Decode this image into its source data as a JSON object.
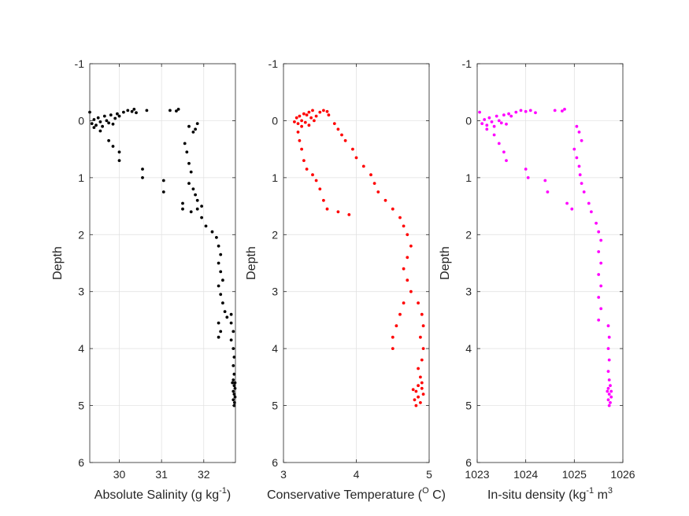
{
  "chart_data": [
    {
      "type": "scatter",
      "xlabel": "Absolute Salinity (g kg",
      "xlabel_sup": "-1",
      "xlabel_tail": ")",
      "ylabel": "Depth",
      "xlim": [
        29.3,
        32.75
      ],
      "ylim": [
        -1,
        6
      ],
      "y_reversed": true,
      "xticks": [
        30,
        31,
        32
      ],
      "yticks": [
        -1,
        0,
        1,
        2,
        3,
        4,
        5,
        6
      ],
      "grid": true,
      "color": "#000000",
      "points": [
        [
          29.3,
          -0.15
        ],
        [
          29.35,
          0.05
        ],
        [
          29.4,
          -0.02
        ],
        [
          29.45,
          0.08
        ],
        [
          29.5,
          -0.05
        ],
        [
          29.55,
          0.02
        ],
        [
          29.6,
          0.1
        ],
        [
          29.65,
          -0.08
        ],
        [
          29.7,
          0.0
        ],
        [
          29.75,
          0.04
        ],
        [
          29.8,
          -0.1
        ],
        [
          29.85,
          0.06
        ],
        [
          29.9,
          -0.04
        ],
        [
          29.95,
          -0.12
        ],
        [
          30.0,
          -0.08
        ],
        [
          30.1,
          -0.15
        ],
        [
          30.2,
          -0.18
        ],
        [
          30.3,
          -0.16
        ],
        [
          30.35,
          -0.2
        ],
        [
          30.4,
          -0.14
        ],
        [
          30.65,
          -0.18
        ],
        [
          31.2,
          -0.18
        ],
        [
          31.35,
          -0.17
        ],
        [
          31.4,
          -0.2
        ],
        [
          29.4,
          0.12
        ],
        [
          29.55,
          0.18
        ],
        [
          29.75,
          0.35
        ],
        [
          29.85,
          0.45
        ],
        [
          30.0,
          0.55
        ],
        [
          30.0,
          0.7
        ],
        [
          30.55,
          0.85
        ],
        [
          30.55,
          1.0
        ],
        [
          31.05,
          1.05
        ],
        [
          31.05,
          1.25
        ],
        [
          31.5,
          1.45
        ],
        [
          31.5,
          1.55
        ],
        [
          31.7,
          1.6
        ],
        [
          31.85,
          1.55
        ],
        [
          31.65,
          0.1
        ],
        [
          31.75,
          0.2
        ],
        [
          31.85,
          0.05
        ],
        [
          31.8,
          0.15
        ],
        [
          31.55,
          0.4
        ],
        [
          31.6,
          0.55
        ],
        [
          31.65,
          0.75
        ],
        [
          31.7,
          0.9
        ],
        [
          31.65,
          1.1
        ],
        [
          31.75,
          1.2
        ],
        [
          31.8,
          1.3
        ],
        [
          31.85,
          1.4
        ],
        [
          31.95,
          1.5
        ],
        [
          31.95,
          1.7
        ],
        [
          32.05,
          1.85
        ],
        [
          32.2,
          1.95
        ],
        [
          32.3,
          2.05
        ],
        [
          32.35,
          2.2
        ],
        [
          32.4,
          2.35
        ],
        [
          32.35,
          2.5
        ],
        [
          32.4,
          2.65
        ],
        [
          32.45,
          2.8
        ],
        [
          32.35,
          2.9
        ],
        [
          32.4,
          3.05
        ],
        [
          32.45,
          3.2
        ],
        [
          32.5,
          3.35
        ],
        [
          32.55,
          3.45
        ],
        [
          32.35,
          3.55
        ],
        [
          32.4,
          3.7
        ],
        [
          32.35,
          3.8
        ],
        [
          32.65,
          3.4
        ],
        [
          32.65,
          3.55
        ],
        [
          32.7,
          3.7
        ],
        [
          32.65,
          3.85
        ],
        [
          32.7,
          4.0
        ],
        [
          32.72,
          4.15
        ],
        [
          32.7,
          4.3
        ],
        [
          32.72,
          4.45
        ],
        [
          32.7,
          4.55
        ],
        [
          32.72,
          4.65
        ],
        [
          32.74,
          4.7
        ],
        [
          32.7,
          4.75
        ],
        [
          32.72,
          4.8
        ],
        [
          32.74,
          4.85
        ],
        [
          32.7,
          4.9
        ],
        [
          32.73,
          4.95
        ],
        [
          32.72,
          5.0
        ],
        [
          32.68,
          4.6
        ],
        [
          32.74,
          4.6
        ]
      ]
    },
    {
      "type": "scatter",
      "xlabel": "Conservative Temperature (",
      "xlabel_sup": "O",
      "xlabel_tail": " C)",
      "ylabel": "Depth",
      "xlim": [
        3,
        5
      ],
      "ylim": [
        -1,
        6
      ],
      "y_reversed": true,
      "xticks": [
        3,
        4,
        5
      ],
      "yticks": [
        -1,
        0,
        1,
        2,
        3,
        4,
        5,
        6
      ],
      "grid": true,
      "color": "#ff0000",
      "points": [
        [
          3.15,
          0.02
        ],
        [
          3.18,
          -0.05
        ],
        [
          3.2,
          0.05
        ],
        [
          3.22,
          -0.08
        ],
        [
          3.25,
          0.0
        ],
        [
          3.28,
          -0.12
        ],
        [
          3.3,
          0.03
        ],
        [
          3.32,
          -0.1
        ],
        [
          3.35,
          -0.15
        ],
        [
          3.38,
          -0.05
        ],
        [
          3.4,
          -0.18
        ],
        [
          3.42,
          0.0
        ],
        [
          3.45,
          -0.08
        ],
        [
          3.5,
          -0.15
        ],
        [
          3.55,
          -0.18
        ],
        [
          3.6,
          -0.16
        ],
        [
          3.62,
          -0.1
        ],
        [
          3.35,
          0.08
        ],
        [
          3.25,
          0.1
        ],
        [
          3.2,
          0.2
        ],
        [
          3.22,
          0.35
        ],
        [
          3.25,
          0.5
        ],
        [
          3.28,
          0.7
        ],
        [
          3.32,
          0.85
        ],
        [
          3.4,
          0.95
        ],
        [
          3.45,
          1.05
        ],
        [
          3.5,
          1.2
        ],
        [
          3.55,
          1.4
        ],
        [
          3.6,
          1.55
        ],
        [
          3.75,
          1.6
        ],
        [
          3.9,
          1.65
        ],
        [
          3.7,
          0.05
        ],
        [
          3.75,
          0.15
        ],
        [
          3.8,
          0.25
        ],
        [
          3.85,
          0.35
        ],
        [
          3.95,
          0.5
        ],
        [
          4.0,
          0.65
        ],
        [
          4.1,
          0.8
        ],
        [
          4.2,
          0.95
        ],
        [
          4.25,
          1.1
        ],
        [
          4.3,
          1.25
        ],
        [
          4.4,
          1.4
        ],
        [
          4.5,
          1.55
        ],
        [
          4.6,
          1.7
        ],
        [
          4.65,
          1.85
        ],
        [
          4.7,
          2.0
        ],
        [
          4.75,
          2.2
        ],
        [
          4.7,
          2.4
        ],
        [
          4.65,
          2.6
        ],
        [
          4.7,
          2.8
        ],
        [
          4.75,
          3.0
        ],
        [
          4.65,
          3.2
        ],
        [
          4.6,
          3.4
        ],
        [
          4.55,
          3.6
        ],
        [
          4.5,
          3.8
        ],
        [
          4.5,
          4.0
        ],
        [
          4.85,
          3.2
        ],
        [
          4.9,
          3.4
        ],
        [
          4.92,
          3.6
        ],
        [
          4.88,
          3.8
        ],
        [
          4.92,
          4.0
        ],
        [
          4.9,
          4.2
        ],
        [
          4.85,
          4.35
        ],
        [
          4.88,
          4.5
        ],
        [
          4.85,
          4.65
        ],
        [
          4.82,
          4.75
        ],
        [
          4.9,
          4.7
        ],
        [
          4.92,
          4.8
        ],
        [
          4.85,
          4.85
        ],
        [
          4.8,
          4.9
        ],
        [
          4.88,
          4.95
        ],
        [
          4.82,
          5.0
        ],
        [
          4.9,
          4.6
        ],
        [
          4.78,
          4.72
        ]
      ]
    },
    {
      "type": "scatter",
      "xlabel": "In-situ density (kg",
      "xlabel_sup": "-1",
      "xlabel_tail": " m",
      "xlabel_sup2": "3",
      "ylabel": "Depth",
      "xlim": [
        1023,
        1026
      ],
      "ylim": [
        -1,
        6
      ],
      "y_reversed": true,
      "xticks": [
        1023,
        1024,
        1025,
        1026
      ],
      "yticks": [
        -1,
        0,
        1,
        2,
        3,
        4,
        5,
        6
      ],
      "grid": true,
      "color": "#ff00ff",
      "points": [
        [
          1023.05,
          -0.15
        ],
        [
          1023.1,
          0.05
        ],
        [
          1023.15,
          -0.02
        ],
        [
          1023.2,
          0.08
        ],
        [
          1023.25,
          -0.05
        ],
        [
          1023.3,
          0.02
        ],
        [
          1023.35,
          0.1
        ],
        [
          1023.4,
          -0.08
        ],
        [
          1023.45,
          0.0
        ],
        [
          1023.5,
          0.04
        ],
        [
          1023.55,
          -0.1
        ],
        [
          1023.6,
          0.06
        ],
        [
          1023.65,
          -0.12
        ],
        [
          1023.7,
          -0.08
        ],
        [
          1023.8,
          -0.15
        ],
        [
          1023.9,
          -0.18
        ],
        [
          1024.0,
          -0.16
        ],
        [
          1024.1,
          -0.18
        ],
        [
          1024.2,
          -0.14
        ],
        [
          1024.6,
          -0.18
        ],
        [
          1024.75,
          -0.17
        ],
        [
          1024.8,
          -0.2
        ],
        [
          1023.2,
          0.15
        ],
        [
          1023.35,
          0.25
        ],
        [
          1023.45,
          0.4
        ],
        [
          1023.55,
          0.55
        ],
        [
          1023.6,
          0.7
        ],
        [
          1024.0,
          0.85
        ],
        [
          1024.05,
          1.0
        ],
        [
          1024.4,
          1.05
        ],
        [
          1024.45,
          1.25
        ],
        [
          1024.85,
          1.45
        ],
        [
          1024.95,
          1.55
        ],
        [
          1025.05,
          0.1
        ],
        [
          1025.1,
          0.2
        ],
        [
          1025.15,
          0.35
        ],
        [
          1025.0,
          0.5
        ],
        [
          1025.05,
          0.65
        ],
        [
          1025.1,
          0.8
        ],
        [
          1025.12,
          0.95
        ],
        [
          1025.15,
          1.1
        ],
        [
          1025.2,
          1.25
        ],
        [
          1025.3,
          1.45
        ],
        [
          1025.35,
          1.6
        ],
        [
          1025.45,
          1.8
        ],
        [
          1025.5,
          1.95
        ],
        [
          1025.55,
          2.1
        ],
        [
          1025.5,
          2.3
        ],
        [
          1025.55,
          2.5
        ],
        [
          1025.5,
          2.7
        ],
        [
          1025.55,
          2.9
        ],
        [
          1025.5,
          3.1
        ],
        [
          1025.55,
          3.3
        ],
        [
          1025.5,
          3.5
        ],
        [
          1025.7,
          3.6
        ],
        [
          1025.72,
          3.8
        ],
        [
          1025.7,
          4.0
        ],
        [
          1025.72,
          4.2
        ],
        [
          1025.7,
          4.4
        ],
        [
          1025.72,
          4.55
        ],
        [
          1025.74,
          4.65
        ],
        [
          1025.7,
          4.7
        ],
        [
          1025.72,
          4.8
        ],
        [
          1025.76,
          4.85
        ],
        [
          1025.7,
          4.9
        ],
        [
          1025.74,
          4.95
        ],
        [
          1025.72,
          5.0
        ],
        [
          1025.68,
          4.75
        ],
        [
          1025.76,
          4.75
        ]
      ]
    }
  ]
}
